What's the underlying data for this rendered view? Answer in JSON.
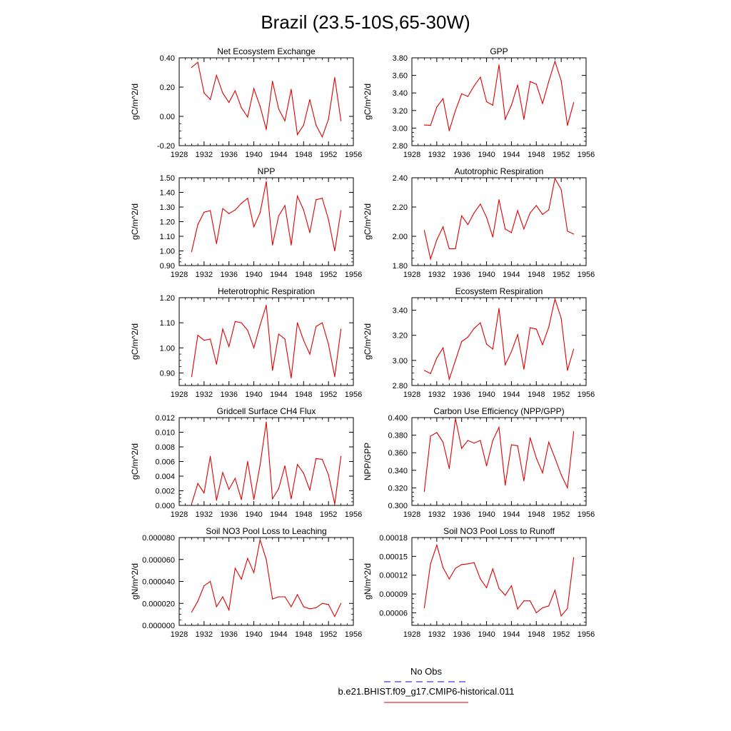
{
  "figure": {
    "title": "Brazil (23.5-10S,65-30W)"
  },
  "legend": {
    "entries": [
      {
        "label": "No Obs",
        "color": "#3f3fd8",
        "style": "dashed"
      },
      {
        "label": "b.e21.BHIST.f09_g17.CMIP6-historical.011",
        "color": "#e03030",
        "style": "solid"
      }
    ]
  },
  "chart_data": [
    {
      "type": "line",
      "title": "Net Ecosystem Exchange",
      "ylabel": "gC/m^2/d",
      "xlim": [
        1928,
        1956
      ],
      "ylim": [
        -0.2,
        0.4
      ],
      "xticks": [
        1928,
        1932,
        1936,
        1940,
        1944,
        1948,
        1952,
        1956
      ],
      "yticks": [
        "-0.20",
        "0.00",
        "0.20",
        "0.40"
      ],
      "color": "#e00000",
      "x": [
        1930,
        1931,
        1932,
        1933,
        1934,
        1935,
        1936,
        1937,
        1938,
        1939,
        1940,
        1941,
        1942,
        1943,
        1944,
        1945,
        1946,
        1947,
        1948,
        1949,
        1950,
        1951,
        1952,
        1953,
        1954
      ],
      "values": [
        0.335,
        0.37,
        0.16,
        0.115,
        0.28,
        0.16,
        0.095,
        0.175,
        0.06,
        -0.005,
        0.19,
        0.07,
        -0.09,
        0.24,
        0.05,
        -0.03,
        0.185,
        -0.125,
        -0.06,
        0.115,
        -0.06,
        -0.14,
        -0.02,
        0.265,
        -0.03
      ]
    },
    {
      "type": "line",
      "title": "GPP",
      "ylabel": "gC/m^2/d",
      "xlim": [
        1928,
        1956
      ],
      "ylim": [
        2.8,
        3.8
      ],
      "xticks": [
        1928,
        1932,
        1936,
        1940,
        1944,
        1948,
        1952,
        1956
      ],
      "yticks": [
        "2.80",
        "3.00",
        "3.20",
        "3.40",
        "3.60",
        "3.80"
      ],
      "color": "#e00000",
      "x": [
        1930,
        1931,
        1932,
        1933,
        1934,
        1935,
        1936,
        1937,
        1938,
        1939,
        1940,
        1941,
        1942,
        1943,
        1944,
        1945,
        1946,
        1947,
        1948,
        1949,
        1950,
        1951,
        1952,
        1953,
        1954
      ],
      "values": [
        3.035,
        3.03,
        3.24,
        3.335,
        2.97,
        3.2,
        3.39,
        3.36,
        3.48,
        3.58,
        3.3,
        3.26,
        3.72,
        3.1,
        3.26,
        3.49,
        3.1,
        3.53,
        3.5,
        3.28,
        3.53,
        3.76,
        3.54,
        3.03,
        3.29
      ]
    },
    {
      "type": "line",
      "title": "NPP",
      "ylabel": "gC/m^2/d",
      "xlim": [
        1928,
        1956
      ],
      "ylim": [
        0.9,
        1.5
      ],
      "xticks": [
        1928,
        1932,
        1936,
        1940,
        1944,
        1948,
        1952,
        1956
      ],
      "yticks": [
        "0.90",
        "1.00",
        "1.10",
        "1.20",
        "1.30",
        "1.40",
        "1.50"
      ],
      "color": "#e00000",
      "x": [
        1930,
        1931,
        1932,
        1933,
        1934,
        1935,
        1936,
        1937,
        1938,
        1939,
        1940,
        1941,
        1942,
        1943,
        1944,
        1945,
        1946,
        1947,
        1948,
        1949,
        1950,
        1951,
        1952,
        1953,
        1954
      ],
      "values": [
        0.995,
        1.18,
        1.265,
        1.275,
        1.05,
        1.29,
        1.255,
        1.28,
        1.325,
        1.36,
        1.165,
        1.26,
        1.475,
        1.04,
        1.24,
        1.31,
        1.04,
        1.375,
        1.28,
        1.125,
        1.35,
        1.36,
        1.215,
        1.0,
        1.275
      ]
    },
    {
      "type": "line",
      "title": "Autotrophic Respiration",
      "ylabel": "gC/m^2/d",
      "xlim": [
        1928,
        1956
      ],
      "ylim": [
        1.8,
        2.4
      ],
      "xticks": [
        1928,
        1932,
        1936,
        1940,
        1944,
        1948,
        1952,
        1956
      ],
      "yticks": [
        "1.80",
        "2.00",
        "2.20",
        "2.40"
      ],
      "color": "#e00000",
      "x": [
        1930,
        1931,
        1932,
        1933,
        1934,
        1935,
        1936,
        1937,
        1938,
        1939,
        1940,
        1941,
        1942,
        1943,
        1944,
        1945,
        1946,
        1947,
        1948,
        1949,
        1950,
        1951,
        1952,
        1953,
        1954
      ],
      "values": [
        2.04,
        1.845,
        1.975,
        2.065,
        1.915,
        1.915,
        2.14,
        2.08,
        2.16,
        2.22,
        2.13,
        1.995,
        2.25,
        2.05,
        2.025,
        2.175,
        2.05,
        2.16,
        2.21,
        2.15,
        2.18,
        2.395,
        2.32,
        2.035,
        2.015
      ]
    },
    {
      "type": "line",
      "title": "Heterotrophic Respiration",
      "ylabel": "gC/m^2/d",
      "xlim": [
        1928,
        1956
      ],
      "ylim": [
        0.85,
        1.2
      ],
      "xticks": [
        1928,
        1932,
        1936,
        1940,
        1944,
        1948,
        1952,
        1956
      ],
      "yticks": [
        "0.90",
        "1.00",
        "1.10",
        "1.20"
      ],
      "color": "#e00000",
      "x": [
        1930,
        1931,
        1932,
        1933,
        1934,
        1935,
        1936,
        1937,
        1938,
        1939,
        1940,
        1941,
        1942,
        1943,
        1944,
        1945,
        1946,
        1947,
        1948,
        1949,
        1950,
        1951,
        1952,
        1953,
        1954
      ],
      "values": [
        0.885,
        1.05,
        1.03,
        1.035,
        0.935,
        1.075,
        1.005,
        1.105,
        1.1,
        1.07,
        1.0,
        1.09,
        1.17,
        0.91,
        1.055,
        1.035,
        0.88,
        1.1,
        1.03,
        0.975,
        1.085,
        1.1,
        1.015,
        0.885,
        1.075
      ]
    },
    {
      "type": "line",
      "title": "Ecosystem Respiration",
      "ylabel": "gC/m^2/d",
      "xlim": [
        1928,
        1956
      ],
      "ylim": [
        2.8,
        3.5
      ],
      "xticks": [
        1928,
        1932,
        1936,
        1940,
        1944,
        1948,
        1952,
        1956
      ],
      "yticks": [
        "2.80",
        "3.00",
        "3.20",
        "3.40"
      ],
      "color": "#e00000",
      "x": [
        1930,
        1931,
        1932,
        1933,
        1934,
        1935,
        1936,
        1937,
        1938,
        1939,
        1940,
        1941,
        1942,
        1943,
        1944,
        1945,
        1946,
        1947,
        1948,
        1949,
        1950,
        1951,
        1952,
        1953,
        1954
      ],
      "values": [
        2.92,
        2.895,
        3.02,
        3.1,
        2.85,
        3.0,
        3.15,
        3.185,
        3.255,
        3.3,
        3.13,
        3.09,
        3.415,
        2.965,
        3.07,
        3.205,
        2.93,
        3.26,
        3.25,
        3.125,
        3.265,
        3.49,
        3.335,
        2.92,
        3.09
      ]
    },
    {
      "type": "line",
      "title": "Gridcell Surface CH4 Flux",
      "ylabel": "gC/m^2/d",
      "xlim": [
        1928,
        1956
      ],
      "ylim": [
        0,
        0.012
      ],
      "xticks": [
        1928,
        1932,
        1936,
        1940,
        1944,
        1948,
        1952,
        1956
      ],
      "yticks": [
        "0.000",
        "0.002",
        "0.004",
        "0.006",
        "0.008",
        "0.010",
        "0.012"
      ],
      "color": "#e00000",
      "x": [
        1930,
        1931,
        1932,
        1933,
        1934,
        1935,
        1936,
        1937,
        1938,
        1939,
        1940,
        1941,
        1942,
        1943,
        1944,
        1945,
        1946,
        1947,
        1948,
        1949,
        1950,
        1951,
        1952,
        1953,
        1954
      ],
      "values": [
        0.0002,
        0.003,
        0.0017,
        0.0067,
        0.0007,
        0.0045,
        0.0022,
        0.0037,
        0.0008,
        0.006,
        0.0008,
        0.0055,
        0.0114,
        0.0009,
        0.0023,
        0.0054,
        0.0009,
        0.0056,
        0.0044,
        0.0021,
        0.0064,
        0.0063,
        0.0042,
        0.0002,
        0.0067
      ]
    },
    {
      "type": "line",
      "title": "Carbon Use Efficiency (NPP/GPP)",
      "ylabel": "NPP/GPP",
      "xlim": [
        1928,
        1956
      ],
      "ylim": [
        0.3,
        0.4
      ],
      "xticks": [
        1928,
        1932,
        1936,
        1940,
        1944,
        1948,
        1952,
        1956
      ],
      "yticks": [
        "0.300",
        "0.320",
        "0.340",
        "0.360",
        "0.380",
        "0.400"
      ],
      "color": "#e00000",
      "x": [
        1930,
        1931,
        1932,
        1933,
        1934,
        1935,
        1936,
        1937,
        1938,
        1939,
        1940,
        1941,
        1942,
        1943,
        1944,
        1945,
        1946,
        1947,
        1948,
        1949,
        1950,
        1951,
        1952,
        1953,
        1954
      ],
      "values": [
        0.316,
        0.379,
        0.383,
        0.372,
        0.342,
        0.399,
        0.365,
        0.374,
        0.371,
        0.374,
        0.345,
        0.374,
        0.389,
        0.323,
        0.369,
        0.368,
        0.328,
        0.377,
        0.354,
        0.337,
        0.372,
        0.354,
        0.335,
        0.32,
        0.384
      ]
    },
    {
      "type": "line",
      "title": "Soil NO3 Pool Loss to Leaching",
      "ylabel": "gN/m^2/d",
      "xlim": [
        1928,
        1956
      ],
      "ylim": [
        0,
        8e-05
      ],
      "xticks": [
        1928,
        1932,
        1936,
        1940,
        1944,
        1948,
        1952,
        1956
      ],
      "yticks": [
        "0.000000",
        "0.000020",
        "0.000040",
        "0.000060",
        "0.000080"
      ],
      "color": "#e00000",
      "x": [
        1930,
        1931,
        1932,
        1933,
        1934,
        1935,
        1936,
        1937,
        1938,
        1939,
        1940,
        1941,
        1942,
        1943,
        1944,
        1945,
        1946,
        1947,
        1948,
        1949,
        1950,
        1951,
        1952,
        1953,
        1954
      ],
      "values": [
        1.2e-05,
        2.2e-05,
        3.6e-05,
        4e-05,
        1.7e-05,
        2.6e-05,
        1.4e-05,
        5.2e-05,
        4.2e-05,
        6.1e-05,
        4.8e-05,
        7.8e-05,
        6e-05,
        2.4e-05,
        2.6e-05,
        2.6e-05,
        1.7e-05,
        2.8e-05,
        1.7e-05,
        1.5e-05,
        1.6e-05,
        2e-05,
        1.9e-05,
        8e-06,
        2e-05
      ]
    },
    {
      "type": "line",
      "title": "Soil NO3 Pool Loss to Runoff",
      "ylabel": "gN/m^2/d",
      "xlim": [
        1928,
        1956
      ],
      "ylim": [
        4e-05,
        0.00018
      ],
      "xticks": [
        1928,
        1932,
        1936,
        1940,
        1944,
        1948,
        1952,
        1956
      ],
      "yticks": [
        "0.00006",
        "0.00009",
        "0.00012",
        "0.00015",
        "0.00018"
      ],
      "color": "#e00000",
      "x": [
        1930,
        1931,
        1932,
        1933,
        1934,
        1935,
        1936,
        1937,
        1938,
        1939,
        1940,
        1941,
        1942,
        1943,
        1944,
        1945,
        1946,
        1947,
        1948,
        1949,
        1950,
        1951,
        1952,
        1953,
        1954
      ],
      "values": [
        6.8e-05,
        0.000138,
        0.000168,
        0.000132,
        0.000114,
        0.000131,
        0.000137,
        0.000138,
        0.00014,
        0.000114,
        0.0001,
        0.00013,
        9.9e-05,
        8.8e-05,
        0.000103,
        6.6e-05,
        7.9e-05,
        7.9e-05,
        6e-05,
        6.8e-05,
        7.1e-05,
        9.6e-05,
        5.5e-05,
        6.7e-05,
        0.000148
      ]
    }
  ]
}
